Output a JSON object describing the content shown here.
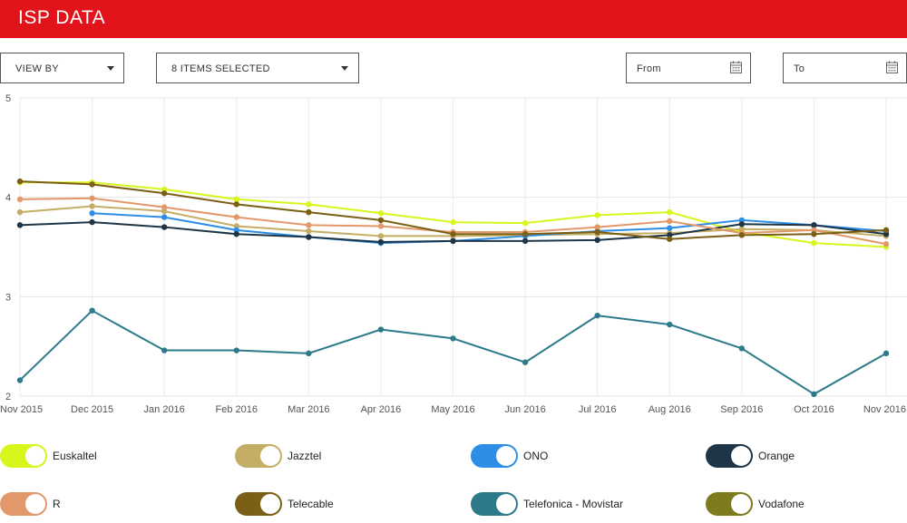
{
  "header": {
    "title": "ISP DATA"
  },
  "controls": {
    "view_by": "VIEW BY",
    "items_selected": "8 ITEMS SELECTED",
    "from": "From",
    "to": "To"
  },
  "chart_data": {
    "type": "line",
    "categories": [
      "Nov 2015",
      "Dec 2015",
      "Jan 2016",
      "Feb 2016",
      "Mar 2016",
      "Apr 2016",
      "May 2016",
      "Jun 2016",
      "Jul 2016",
      "Aug 2016",
      "Sep 2016",
      "Oct 2016",
      "Nov 2016"
    ],
    "ylim": [
      2,
      5
    ],
    "yticks": [
      2,
      3,
      4,
      5
    ],
    "grid": true,
    "legend_position": "bottom",
    "series": [
      {
        "name": "Euskaltel",
        "color": "#d8f51c",
        "values": [
          4.15,
          4.15,
          4.08,
          3.98,
          3.93,
          3.84,
          3.75,
          3.74,
          3.82,
          3.85,
          3.65,
          3.54,
          3.5
        ]
      },
      {
        "name": "Jazztel",
        "color": "#c4ad64",
        "values": [
          3.85,
          3.91,
          3.86,
          3.71,
          3.66,
          3.61,
          3.61,
          3.62,
          3.63,
          3.64,
          3.68,
          3.67,
          3.61
        ]
      },
      {
        "name": "ONO",
        "color": "#2e8ee6",
        "values": [
          null,
          3.84,
          3.8,
          3.67,
          3.6,
          3.54,
          3.56,
          3.61,
          3.66,
          3.69,
          3.77,
          3.72,
          3.66
        ]
      },
      {
        "name": "Orange",
        "color": "#1d3547",
        "values": [
          3.72,
          3.75,
          3.7,
          3.63,
          3.6,
          3.55,
          3.56,
          3.56,
          3.57,
          3.62,
          3.73,
          3.72,
          3.63
        ]
      },
      {
        "name": "R",
        "color": "#e2986a",
        "values": [
          3.98,
          3.99,
          3.9,
          3.8,
          3.72,
          3.71,
          3.65,
          3.65,
          3.7,
          3.76,
          3.64,
          3.67,
          3.53
        ]
      },
      {
        "name": "Telecable",
        "color": "#7a5f14",
        "values": [
          4.16,
          4.13,
          4.04,
          3.93,
          3.85,
          3.77,
          3.63,
          3.63,
          3.65,
          3.58,
          3.62,
          3.63,
          3.67
        ]
      },
      {
        "name": "Telefonica - Movistar",
        "color": "#2c7a8a",
        "values": [
          2.16,
          2.86,
          2.46,
          2.46,
          2.43,
          2.67,
          2.58,
          2.34,
          2.81,
          2.72,
          2.48,
          2.02,
          2.43
        ]
      },
      {
        "name": "Vodafone",
        "color": "#7d7b1e",
        "values": [
          null,
          null,
          null,
          null,
          null,
          null,
          null,
          null,
          null,
          null,
          null,
          null,
          null
        ]
      }
    ]
  },
  "legend": [
    {
      "name": "Euskaltel",
      "color": "#d8f51c"
    },
    {
      "name": "Jazztel",
      "color": "#c4ad64"
    },
    {
      "name": "ONO",
      "color": "#2e8ee6"
    },
    {
      "name": "Orange",
      "color": "#1d3547"
    },
    {
      "name": "R",
      "color": "#e2986a"
    },
    {
      "name": "Telecable",
      "color": "#7a5f14"
    },
    {
      "name": "Telefonica - Movistar",
      "color": "#2c7a8a"
    },
    {
      "name": "Vodafone",
      "color": "#7d7b1e"
    }
  ]
}
